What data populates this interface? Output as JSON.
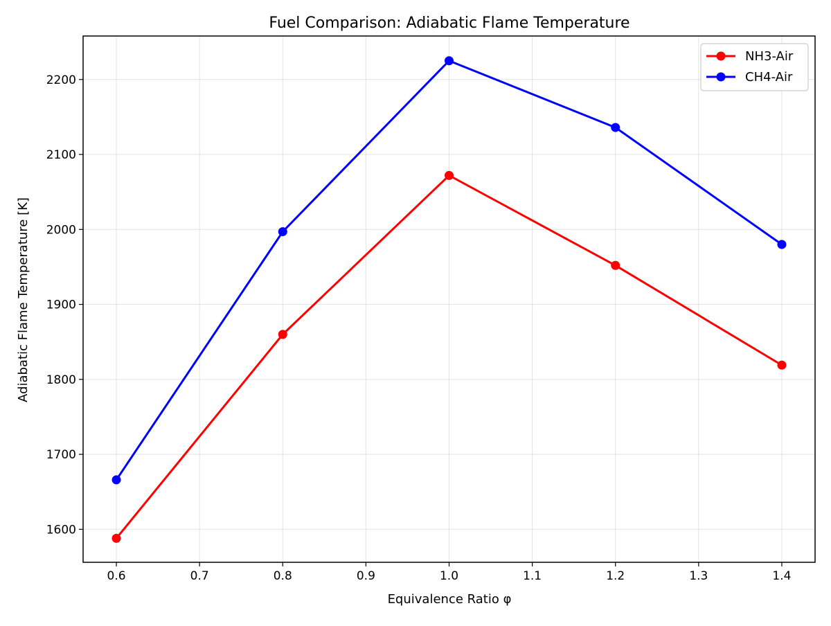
{
  "chart_data": {
    "type": "line",
    "title": "Fuel Comparison: Adiabatic Flame Temperature",
    "xlabel": "Equivalence Ratio φ",
    "ylabel": "Adiabatic Flame Temperature [K]",
    "x": [
      0.6,
      0.8,
      1.0,
      1.2,
      1.4
    ],
    "xlim": [
      0.56,
      1.44
    ],
    "ylim": [
      1556,
      2258
    ],
    "xticks": [
      0.6,
      0.7,
      0.8,
      0.9,
      1.0,
      1.1,
      1.2,
      1.3,
      1.4
    ],
    "xtick_labels": [
      "0.6",
      "0.7",
      "0.8",
      "0.9",
      "1.0",
      "1.1",
      "1.2",
      "1.3",
      "1.4"
    ],
    "yticks": [
      1600,
      1700,
      1800,
      1900,
      2000,
      2100,
      2200
    ],
    "ytick_labels": [
      "1600",
      "1700",
      "1800",
      "1900",
      "2000",
      "2100",
      "2200"
    ],
    "grid": true,
    "legend_position": "top-right",
    "series": [
      {
        "name": "NH3-Air",
        "color": "#ff0000",
        "values": [
          1588,
          1860,
          2072,
          1952,
          1819
        ]
      },
      {
        "name": "CH4-Air",
        "color": "#0000ff",
        "values": [
          1666,
          1997,
          2225,
          2136,
          1980
        ]
      }
    ]
  }
}
